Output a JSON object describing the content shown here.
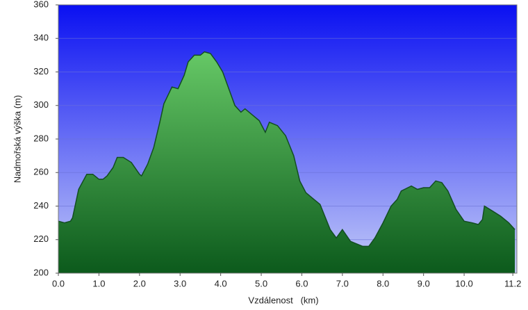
{
  "chart_data": {
    "type": "area",
    "x_label": "Vzdálenost   (km)",
    "y_label": "Nadmořská výška (m)",
    "x": [
      0.0,
      0.15,
      0.3,
      0.35,
      0.5,
      0.7,
      0.85,
      1.0,
      1.1,
      1.2,
      1.35,
      1.45,
      1.6,
      1.8,
      2.0,
      2.05,
      2.2,
      2.35,
      2.5,
      2.6,
      2.8,
      2.95,
      3.1,
      3.2,
      3.35,
      3.5,
      3.6,
      3.75,
      3.9,
      4.05,
      4.2,
      4.35,
      4.5,
      4.6,
      4.75,
      4.95,
      5.1,
      5.2,
      5.4,
      5.6,
      5.8,
      5.95,
      6.1,
      6.3,
      6.45,
      6.7,
      6.85,
      7.0,
      7.2,
      7.5,
      7.65,
      7.8,
      8.0,
      8.2,
      8.35,
      8.45,
      8.7,
      8.85,
      9.0,
      9.15,
      9.3,
      9.45,
      9.6,
      9.8,
      10.0,
      10.2,
      10.35,
      10.45,
      10.5,
      10.7,
      10.9,
      11.1,
      11.25
    ],
    "values": [
      231,
      230,
      231,
      233,
      250,
      259,
      259,
      256,
      256,
      258,
      263,
      269,
      269,
      266,
      259,
      258,
      265,
      275,
      290,
      301,
      311,
      310,
      318,
      326,
      330,
      330,
      332,
      331,
      326,
      320,
      310,
      300,
      296,
      298,
      295,
      291,
      284,
      290,
      288,
      282,
      270,
      255,
      248,
      244,
      241,
      226,
      221,
      226,
      219,
      216,
      216,
      221,
      230,
      240,
      244,
      249,
      252,
      250,
      251,
      251,
      255,
      254,
      249,
      238,
      231,
      230,
      229,
      232,
      240,
      237,
      234,
      230,
      226
    ],
    "color": "#2e9e3e",
    "xlim": [
      0,
      11.3
    ],
    "ylim": [
      200,
      360
    ],
    "xticks": [
      {
        "value": 0,
        "label": "0.0"
      },
      {
        "value": 1,
        "label": "1.0"
      },
      {
        "value": 2,
        "label": "2.0"
      },
      {
        "value": 3,
        "label": "3.0"
      },
      {
        "value": 4,
        "label": "4.0"
      },
      {
        "value": 5,
        "label": "5.0"
      },
      {
        "value": 6,
        "label": "6.0"
      },
      {
        "value": 7,
        "label": "7.0"
      },
      {
        "value": 8,
        "label": "8.0"
      },
      {
        "value": 9,
        "label": "9.0"
      },
      {
        "value": 10,
        "label": "10.0"
      },
      11.2
    ],
    "yticks": [
      200,
      220,
      240,
      260,
      280,
      300,
      320,
      340,
      360
    ],
    "grid": true
  }
}
